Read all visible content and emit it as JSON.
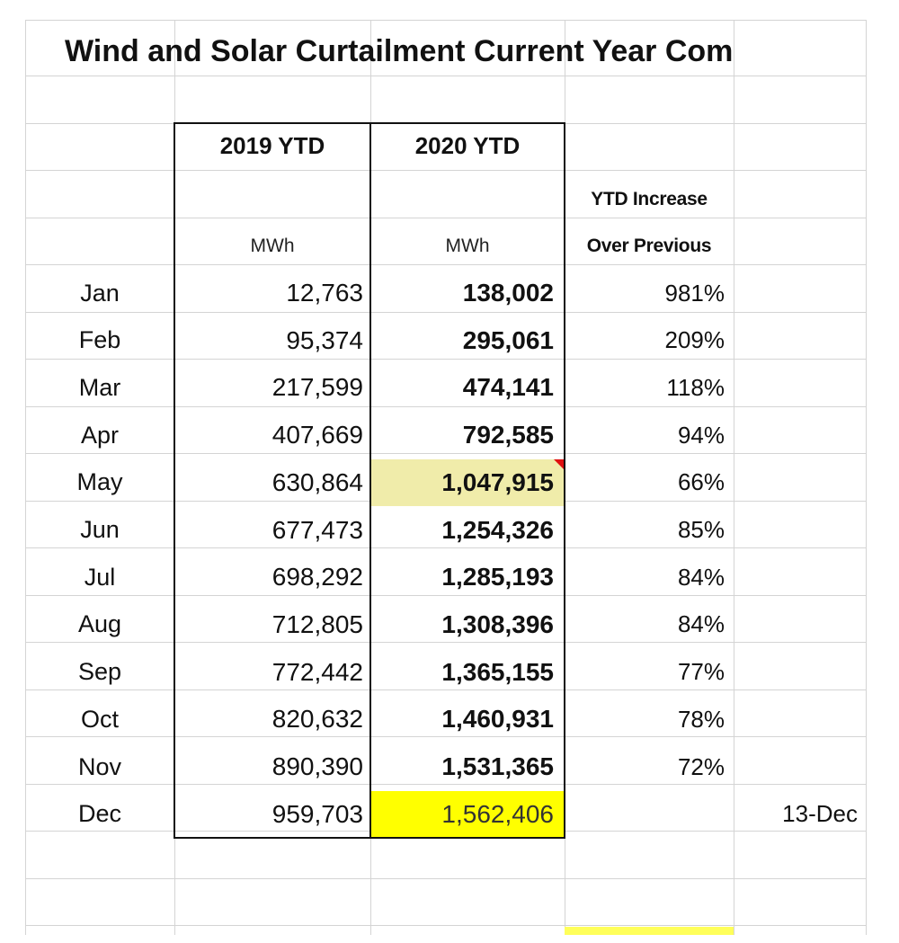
{
  "title": "Wind and Solar Curtailment Current Year Com",
  "headers": {
    "col_2019": "2019 YTD",
    "col_2020": "2020 YTD",
    "increase_line1": "YTD Increase",
    "increase_line2": "Over Previous",
    "unit_2019": "MWh",
    "unit_2020": "MWh"
  },
  "rows": [
    {
      "month": "Jan",
      "ytd_2019": "12,763",
      "ytd_2020": "138,002",
      "increase": "981%"
    },
    {
      "month": "Feb",
      "ytd_2019": "95,374",
      "ytd_2020": "295,061",
      "increase": "209%"
    },
    {
      "month": "Mar",
      "ytd_2019": "217,599",
      "ytd_2020": "474,141",
      "increase": "118%"
    },
    {
      "month": "Apr",
      "ytd_2019": "407,669",
      "ytd_2020": "792,585",
      "increase": "94%"
    },
    {
      "month": "May",
      "ytd_2019": "630,864",
      "ytd_2020": "1,047,915",
      "increase": "66%"
    },
    {
      "month": "Jun",
      "ytd_2019": "677,473",
      "ytd_2020": "1,254,326",
      "increase": "85%"
    },
    {
      "month": "Jul",
      "ytd_2019": "698,292",
      "ytd_2020": "1,285,193",
      "increase": "84%"
    },
    {
      "month": "Aug",
      "ytd_2019": "712,805",
      "ytd_2020": "1,308,396",
      "increase": "84%"
    },
    {
      "month": "Sep",
      "ytd_2019": "772,442",
      "ytd_2020": "1,365,155",
      "increase": "77%"
    },
    {
      "month": "Oct",
      "ytd_2019": "820,632",
      "ytd_2020": "1,460,931",
      "increase": "78%"
    },
    {
      "month": "Nov",
      "ytd_2019": "890,390",
      "ytd_2020": "1,531,365",
      "increase": "72%"
    },
    {
      "month": "Dec",
      "ytd_2019": "959,703",
      "ytd_2020": "1,562,406",
      "increase": "",
      "note": "13-Dec"
    }
  ],
  "colors": {
    "highlight_pale": "#f0ecaa",
    "highlight_yellow": "#ffff00",
    "comment_marker": "#e01010",
    "gridline": "#d4d4d4"
  }
}
